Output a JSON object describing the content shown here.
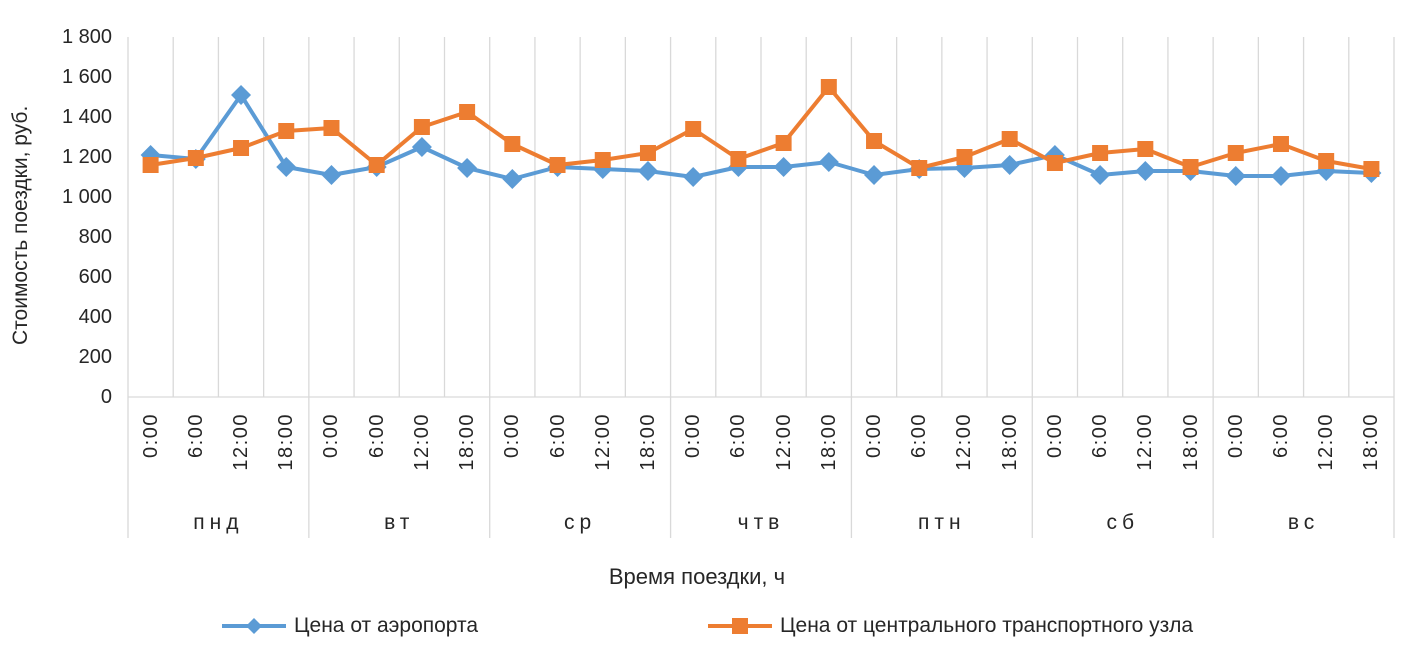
{
  "chart_data": {
    "type": "line",
    "title": "",
    "xlabel": "Время поездки, ч",
    "ylabel": "Стоимость поездки, руб.",
    "ylim": [
      0,
      1800
    ],
    "y_ticks": [
      0,
      200,
      400,
      600,
      800,
      1000,
      1200,
      1400,
      1600,
      1800
    ],
    "y_tick_labels": [
      "0",
      "200",
      "400",
      "600",
      "800",
      "1 000",
      "1 200",
      "1 400",
      "1 600",
      "1 800"
    ],
    "grid": "vertical-only",
    "grid_color": "#d9d9d9",
    "axis_color": "#d9d9d9",
    "text_color": "#262626",
    "legend_position": "bottom",
    "times_per_day": [
      "0:00",
      "6:00",
      "12:00",
      "18:00"
    ],
    "day_groups": [
      "пнд",
      "вт",
      "ср",
      "чтв",
      "птн",
      "сб",
      "вс"
    ],
    "x_labels": [
      "0:00",
      "6:00",
      "12:00",
      "18:00",
      "0:00",
      "6:00",
      "12:00",
      "18:00",
      "0:00",
      "6:00",
      "12:00",
      "18:00",
      "0:00",
      "6:00",
      "12:00",
      "18:00",
      "0:00",
      "6:00",
      "12:00",
      "18:00",
      "0:00",
      "6:00",
      "12:00",
      "18:00",
      "0:00",
      "6:00",
      "12:00",
      "18:00"
    ],
    "series": [
      {
        "name": "Цена от аэропорта",
        "color": "#5b9bd5",
        "marker": "diamond",
        "values": [
          1210,
          1190,
          1510,
          1150,
          1110,
          1150,
          1250,
          1145,
          1090,
          1150,
          1140,
          1130,
          1100,
          1150,
          1150,
          1175,
          1110,
          1140,
          1145,
          1160,
          1210,
          1110,
          1130,
          1130,
          1105,
          1105,
          1130,
          1120
        ]
      },
      {
        "name": "Цена от центрального транспортного узла",
        "color": "#ed7d31",
        "marker": "square",
        "values": [
          1160,
          1195,
          1245,
          1330,
          1345,
          1160,
          1350,
          1425,
          1265,
          1160,
          1185,
          1220,
          1340,
          1190,
          1270,
          1550,
          1280,
          1145,
          1200,
          1290,
          1170,
          1220,
          1240,
          1150,
          1220,
          1265,
          1180,
          1140
        ]
      }
    ]
  }
}
